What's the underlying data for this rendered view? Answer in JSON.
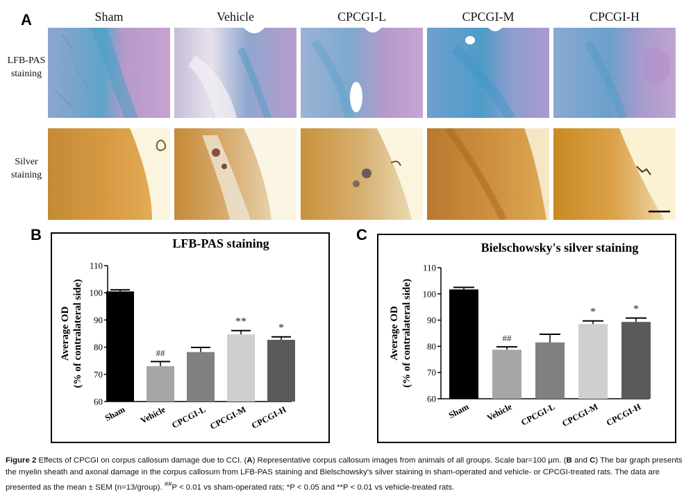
{
  "panel_a": {
    "letter": "A",
    "groups": [
      "Sham",
      "Vehicle",
      "CPCGI-L",
      "CPCGI-M",
      "CPCGI-H"
    ],
    "row_labels": {
      "lfb_line1": "LFB-PAS",
      "lfb_line2": "staining",
      "silver_line1": "Silver",
      "silver_line2": "staining"
    }
  },
  "chart_data": [
    {
      "panel": "B",
      "type": "bar",
      "title": "LFB-PAS staining",
      "ylabel_line1": "Average OD",
      "ylabel_line2": "(% of contralateral side)",
      "categories": [
        "Sham",
        "Vehicle",
        "CPCGI-L",
        "CPCGI-M",
        "CPCGI-H"
      ],
      "values": [
        100.5,
        73,
        78.2,
        84.7,
        82.7
      ],
      "errors": [
        0.6,
        1.7,
        1.7,
        1.4,
        1.1
      ],
      "annotations": [
        "",
        "##",
        "",
        "**",
        "*"
      ],
      "colors": [
        "#000000",
        "#a6a6a6",
        "#808080",
        "#cfcfcf",
        "#5a5a5a"
      ],
      "ylim": [
        60,
        110
      ],
      "yticks": [
        60,
        70,
        80,
        90,
        100,
        110
      ]
    },
    {
      "panel": "C",
      "type": "bar",
      "title": "Bielschowsky's silver staining",
      "ylabel_line1": "Average OD",
      "ylabel_line2": "(% of contralateral side)",
      "categories": [
        "Sham",
        "Vehicle",
        "CPCGI-L",
        "CPCGI-M",
        "CPCGI-H"
      ],
      "values": [
        101.7,
        78.7,
        81.5,
        88.5,
        89.3
      ],
      "errors": [
        0.8,
        1.1,
        3.1,
        1.2,
        1.5
      ],
      "annotations": [
        "",
        "##",
        "",
        "*",
        "*"
      ],
      "colors": [
        "#000000",
        "#a6a6a6",
        "#808080",
        "#cfcfcf",
        "#5a5a5a"
      ],
      "ylim": [
        60,
        110
      ],
      "yticks": [
        60,
        70,
        80,
        90,
        100,
        110
      ]
    }
  ],
  "caption": {
    "label": "Figure 2",
    "t1": " Effects of CPCGI on corpus callosum damage due to CCI. (",
    "a": "A",
    "t2": ") Representative corpus callosum images from animals of all groups. Scale bar=100 µm. (",
    "b": "B",
    "t3": " and ",
    "c": "C",
    "t4": ") The bar graph presents the myelin sheath and axonal damage in the corpus callosum from LFB-PAS staining and Bielschowsky's silver staining in sham-operated and vehicle- or CPCGI-treated rats. The data are presented as the mean ± SEM (n=13/group). ",
    "sup1": "##",
    "t5": "P < 0.01 vs sham-operated rats; *P < 0.05 and **P < 0.01 vs vehicle-treated rats."
  }
}
